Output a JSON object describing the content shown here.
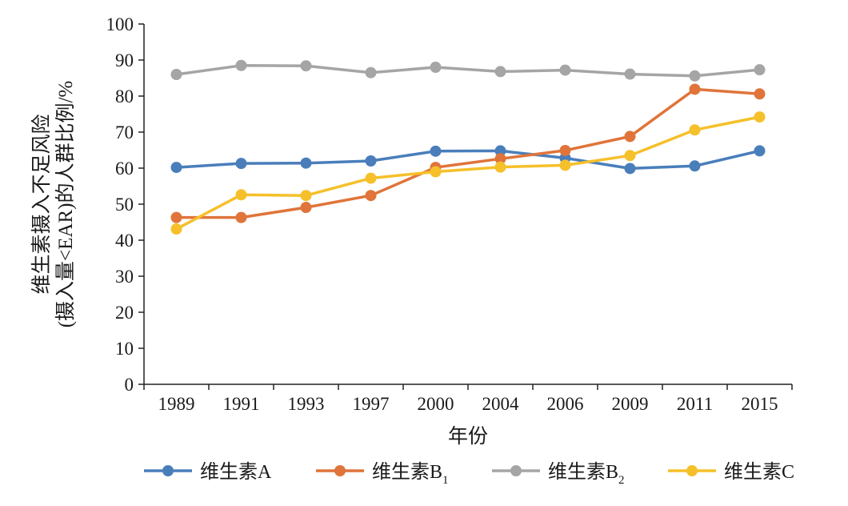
{
  "chart_data": {
    "type": "line",
    "title": "",
    "categories": [
      "1989",
      "1991",
      "1993",
      "1997",
      "2000",
      "2004",
      "2006",
      "2009",
      "2011",
      "2015"
    ],
    "xlabel": "年份",
    "ylabel_lines": [
      "维生素摄入不足风险",
      "(摄入量<EAR)的人群比例/%"
    ],
    "ylim": [
      0,
      100
    ],
    "yticks": [
      0,
      10,
      20,
      30,
      40,
      50,
      60,
      70,
      80,
      90,
      100
    ],
    "ytick_labels": [
      "0",
      "10",
      "20",
      "30",
      "40",
      "50",
      "60",
      "70",
      "80",
      "90",
      "100"
    ],
    "grid": false,
    "legend_position": "bottom",
    "series": [
      {
        "name": "维生素A",
        "name_main": "维生素A",
        "name_sub": "",
        "color": "#4a7ebb",
        "values": [
          60.2,
          61.3,
          61.4,
          62.0,
          64.7,
          64.8,
          62.8,
          59.9,
          60.6,
          64.8
        ]
      },
      {
        "name": "维生素B1",
        "name_main": "维生素B",
        "name_sub": "1",
        "color": "#e0743a",
        "values": [
          46.3,
          46.3,
          49.1,
          52.4,
          60.2,
          62.6,
          64.9,
          68.8,
          81.9,
          80.6
        ]
      },
      {
        "name": "维生素B2",
        "name_main": "维生素B",
        "name_sub": "2",
        "color": "#a5a5a5",
        "values": [
          86.0,
          88.5,
          88.4,
          86.5,
          88.0,
          86.8,
          87.2,
          86.1,
          85.6,
          87.3
        ]
      },
      {
        "name": "维生素C",
        "name_main": "维生素C",
        "name_sub": "",
        "color": "#f5c02a",
        "values": [
          43.1,
          52.6,
          52.4,
          57.2,
          59.0,
          60.3,
          60.8,
          63.5,
          70.6,
          74.2
        ]
      }
    ]
  }
}
